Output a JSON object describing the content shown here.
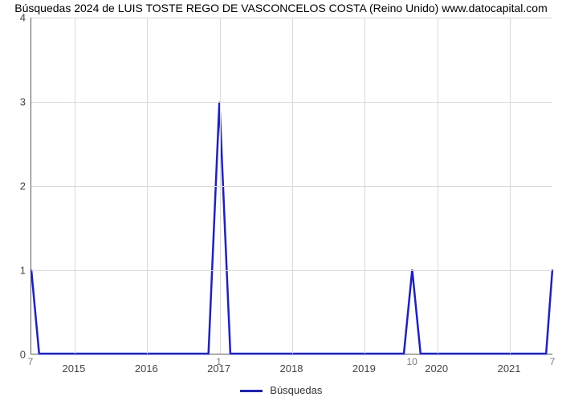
{
  "chart": {
    "type": "line",
    "title": "Búsquedas 2024 de LUIS TOSTE REGO DE VASCONCELOS COSTA (Reino Unido) www.datocapital.com",
    "title_fontsize": 14,
    "background_color": "#ffffff",
    "grid_color": "#d9d9d9",
    "axis_color": "#5b5b5b",
    "line_color": "#1a1fd6",
    "line_width": 2.5,
    "ylim": [
      0,
      4
    ],
    "yticks": [
      0,
      1,
      2,
      3,
      4
    ],
    "x_axis_labels": [
      "2015",
      "2016",
      "2017",
      "2018",
      "2019",
      "2020",
      "2021"
    ],
    "x_axis_positions": [
      0.083,
      0.222,
      0.361,
      0.5,
      0.639,
      0.778,
      0.917
    ],
    "data_value_labels": [
      {
        "text": "7",
        "x": 0.0
      },
      {
        "text": "1",
        "x": 0.361
      },
      {
        "text": "10",
        "x": 0.731
      },
      {
        "text": "7",
        "x": 1.0
      }
    ],
    "series": {
      "name": "Búsquedas",
      "points": [
        [
          0.0,
          1.0
        ],
        [
          0.015,
          0.0
        ],
        [
          0.34,
          0.0
        ],
        [
          0.361,
          3.0
        ],
        [
          0.382,
          0.0
        ],
        [
          0.715,
          0.0
        ],
        [
          0.731,
          1.0
        ],
        [
          0.747,
          0.0
        ],
        [
          0.988,
          0.0
        ],
        [
          1.0,
          1.0
        ]
      ]
    },
    "legend_label": "Búsquedas",
    "label_fontsize": 13
  }
}
